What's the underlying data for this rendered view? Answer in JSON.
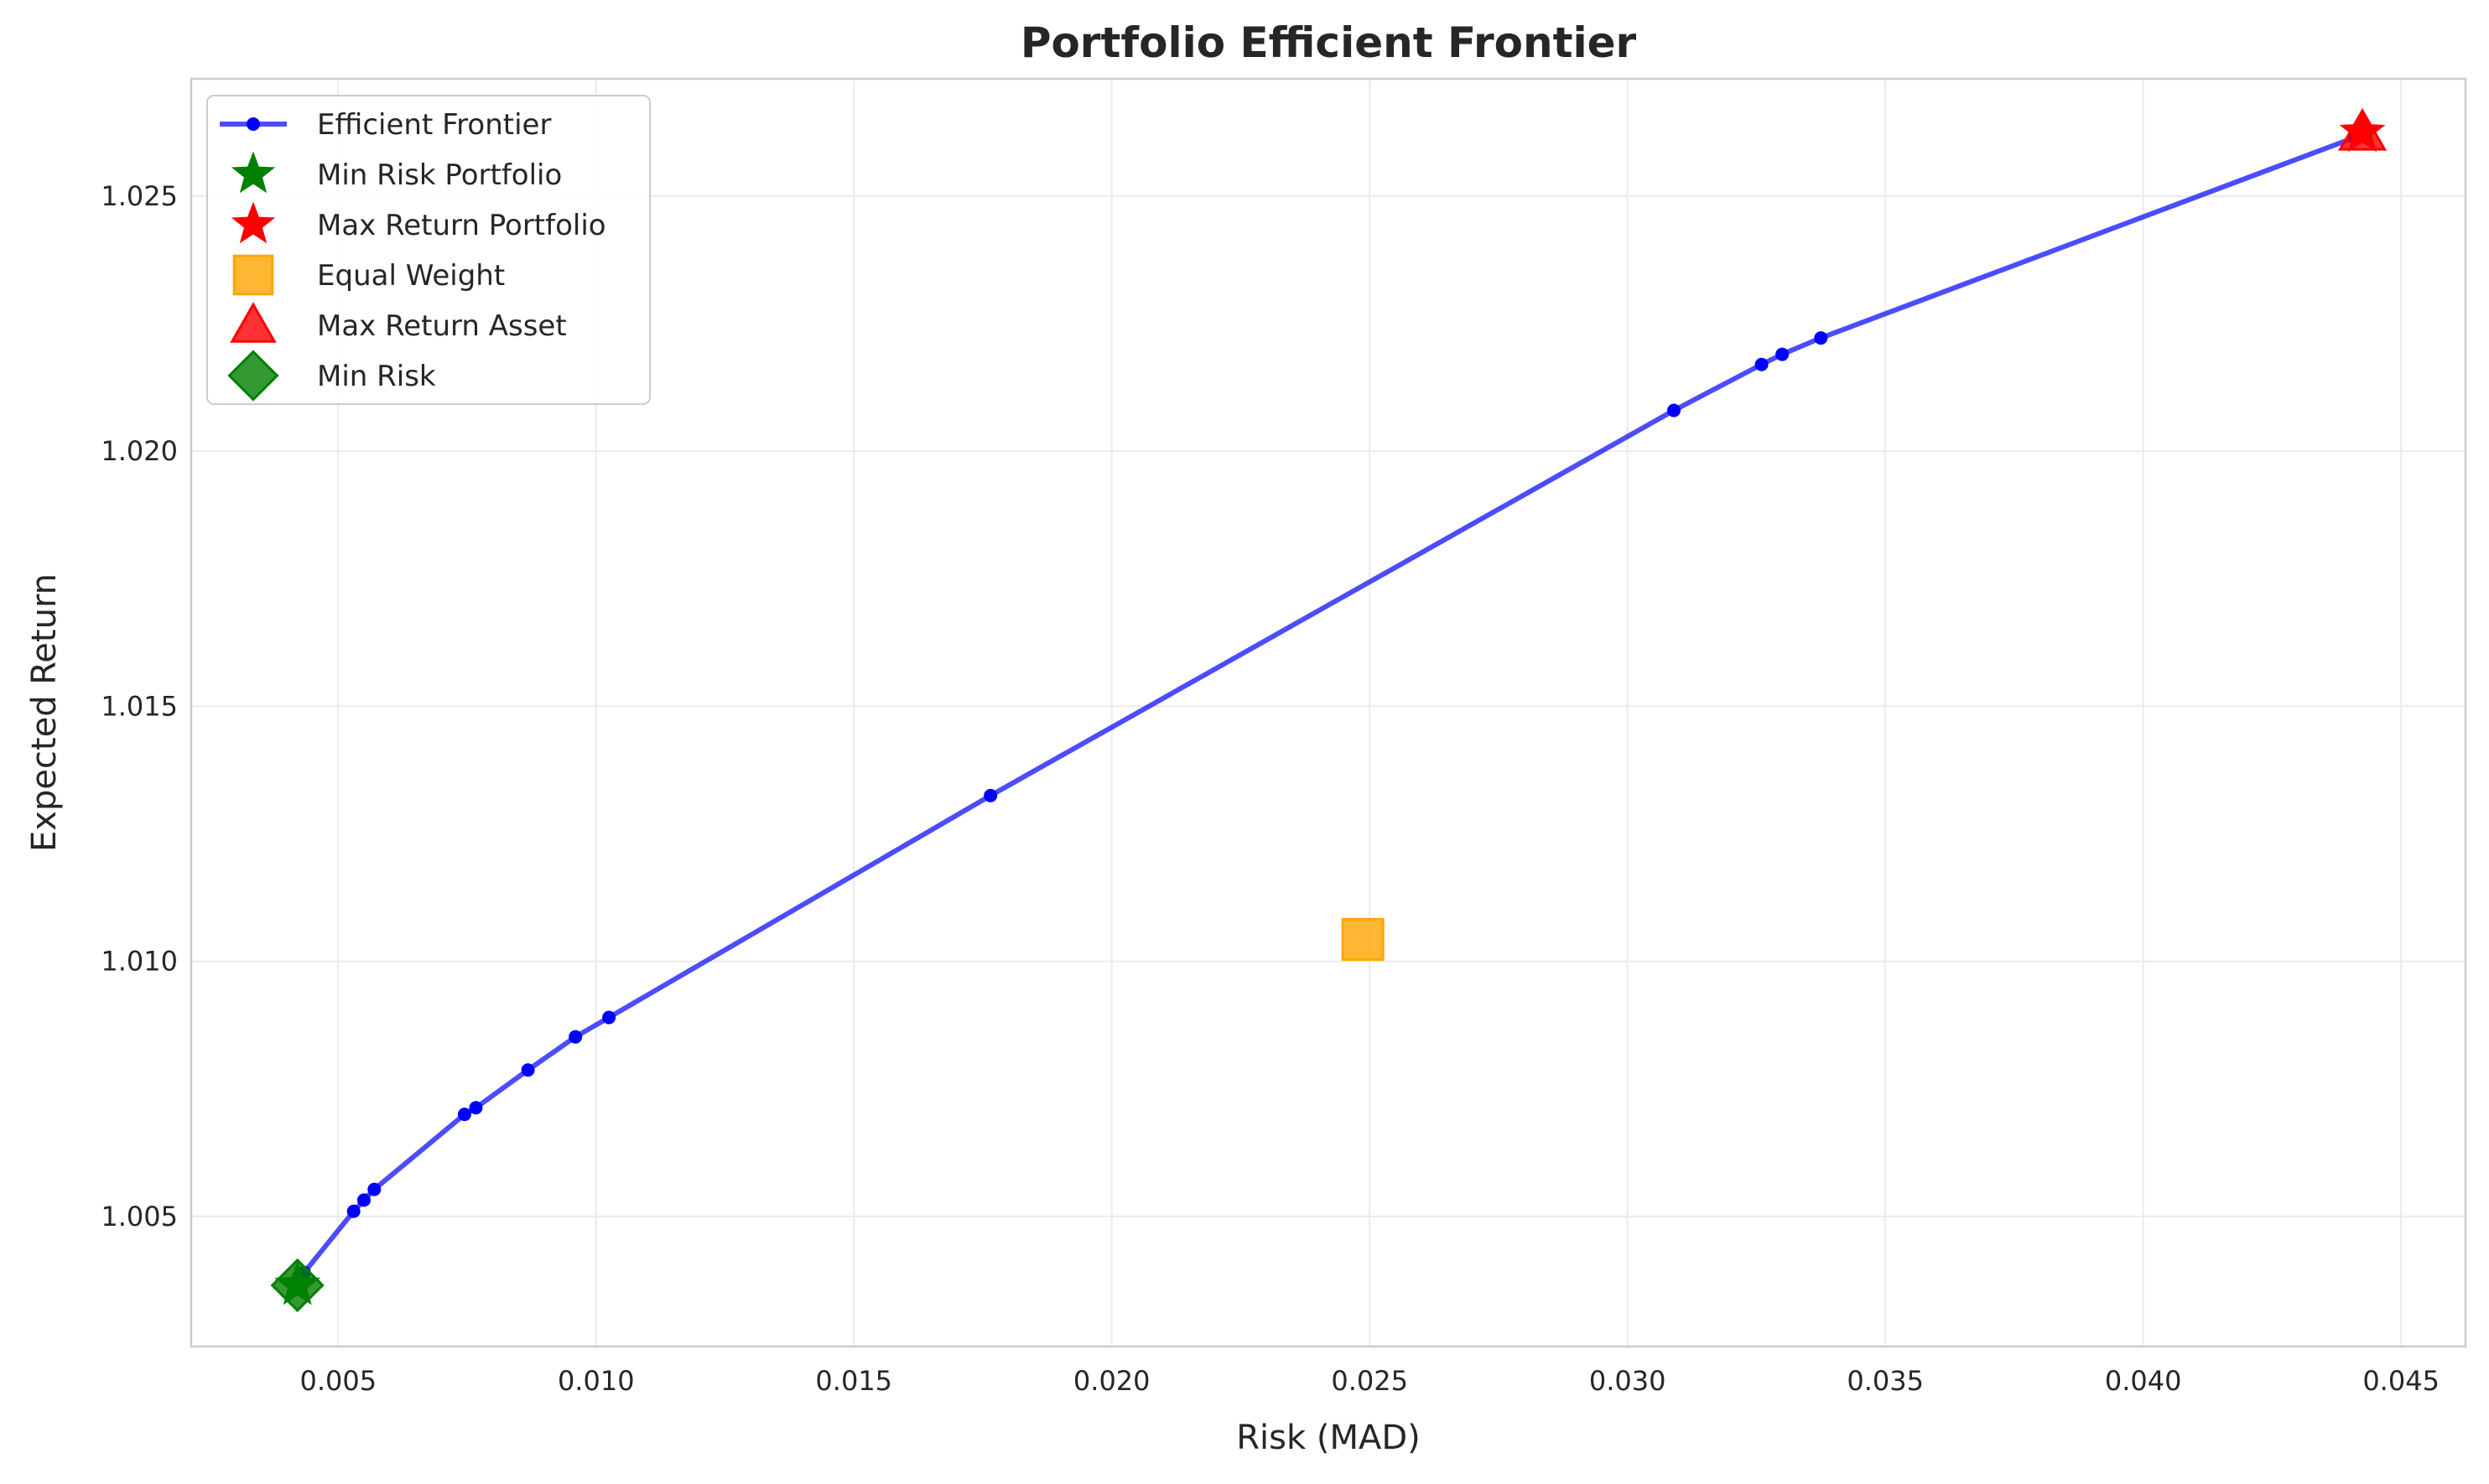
{
  "chart_data": {
    "type": "scatter",
    "title": "Portfolio Efficient Frontier",
    "xlabel": "Risk (MAD)",
    "ylabel": "Expected Return",
    "xlim": [
      0.00215,
      0.04625
    ],
    "ylim": [
      1.00245,
      1.0273
    ],
    "x_ticks": [
      0.005,
      0.01,
      0.015,
      0.02,
      0.025,
      0.03,
      0.035,
      0.04,
      0.045
    ],
    "x_tick_labels": [
      "0.005",
      "0.010",
      "0.015",
      "0.020",
      "0.025",
      "0.030",
      "0.035",
      "0.040",
      "0.045"
    ],
    "y_ticks": [
      1.005,
      1.01,
      1.015,
      1.02,
      1.025
    ],
    "y_tick_labels": [
      "1.005",
      "1.010",
      "1.015",
      "1.020",
      "1.025"
    ],
    "grid": true,
    "legend_position": "top-left",
    "series": [
      {
        "name": "Efficient Frontier",
        "kind": "line-marker",
        "color": "#0000ff",
        "x": [
          0.00421,
          0.00434,
          0.0053,
          0.0055,
          0.0057,
          0.00745,
          0.00767,
          0.00868,
          0.0096,
          0.01025,
          0.01765,
          0.0309,
          0.0326,
          0.033,
          0.03375,
          0.0441
        ],
        "y": [
          1.00365,
          1.0039,
          1.0051,
          1.00532,
          1.00553,
          1.007,
          1.00713,
          1.00787,
          1.00852,
          1.0089,
          1.01325,
          1.0208,
          1.0217,
          1.0219,
          1.02222,
          1.02615
        ]
      },
      {
        "name": "Min Risk Portfolio",
        "kind": "star",
        "color": "#008000",
        "x": [
          0.00421
        ],
        "y": [
          1.00365
        ]
      },
      {
        "name": "Max Return Portfolio",
        "kind": "star",
        "color": "#ff0000",
        "x": [
          0.04425
        ],
        "y": [
          1.02625
        ]
      },
      {
        "name": "Equal Weight",
        "kind": "square",
        "color": "#ffa500",
        "x": [
          0.02487
        ],
        "y": [
          1.01043
        ]
      },
      {
        "name": "Max Return Asset",
        "kind": "triangle",
        "color": "#ff0000",
        "x": [
          0.04425
        ],
        "y": [
          1.02625
        ]
      },
      {
        "name": "Min Risk",
        "kind": "diamond",
        "color": "#008000",
        "x": [
          0.00421
        ],
        "y": [
          1.00365
        ]
      }
    ]
  }
}
